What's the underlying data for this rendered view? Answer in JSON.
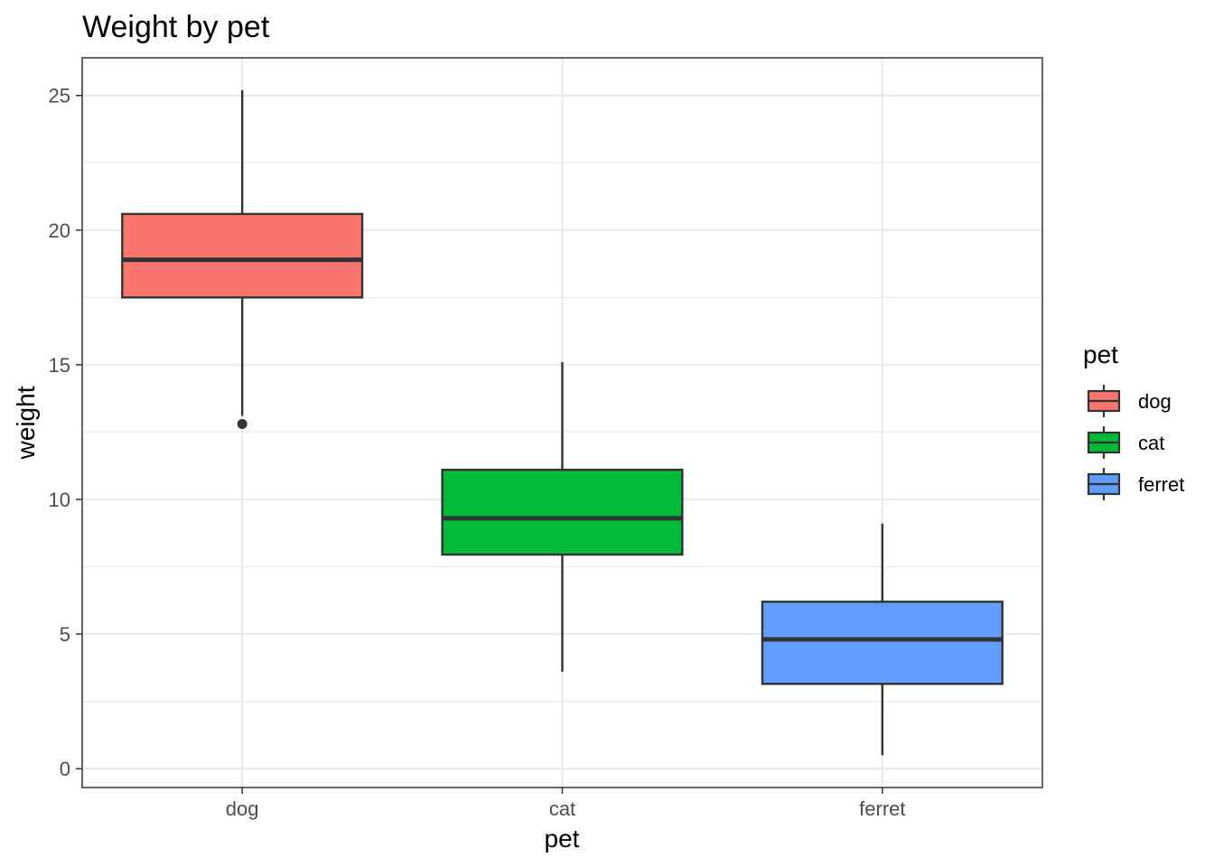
{
  "chart_data": {
    "type": "boxplot",
    "title": "Weight by pet",
    "xlabel": "pet",
    "ylabel": "weight",
    "categories": [
      "dog",
      "cat",
      "ferret"
    ],
    "colors": [
      "#F8766D",
      "#00BA38",
      "#619CFF"
    ],
    "ylim": [
      -0.7,
      26.4
    ],
    "yticks": [
      0,
      5,
      10,
      15,
      20,
      25
    ],
    "ytick_labels": [
      "0",
      "5",
      "10",
      "15",
      "20",
      "25"
    ],
    "grid": true,
    "boxes": [
      {
        "category": "dog",
        "whisker_low": 13.1,
        "q1": 17.5,
        "median": 18.9,
        "q3": 20.6,
        "whisker_high": 25.2,
        "outliers": [
          12.8
        ]
      },
      {
        "category": "cat",
        "whisker_low": 3.6,
        "q1": 7.95,
        "median": 9.3,
        "q3": 11.1,
        "whisker_high": 15.1,
        "outliers": []
      },
      {
        "category": "ferret",
        "whisker_low": 0.5,
        "q1": 3.15,
        "median": 4.8,
        "q3": 6.2,
        "whisker_high": 9.1,
        "outliers": []
      }
    ],
    "legend": {
      "title": "pet",
      "position": "right",
      "entries": [
        "dog",
        "cat",
        "ferret"
      ]
    }
  }
}
